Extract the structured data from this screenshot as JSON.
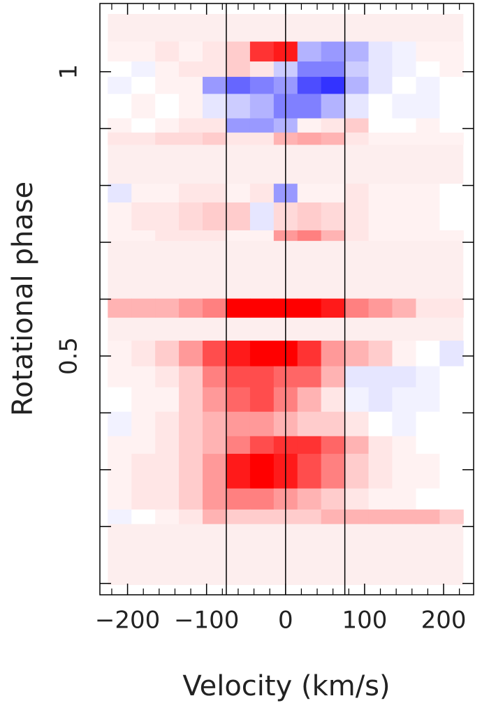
{
  "chart_data": {
    "type": "heatmap",
    "xlabel": "Velocity (km/s)",
    "ylabel": "Rotational phase",
    "xlim": [
      -235,
      238
    ],
    "ylim": [
      0.08,
      1.12
    ],
    "xticks": [
      {
        "value": -200,
        "label": "−200"
      },
      {
        "value": -100,
        "label": "−100"
      },
      0,
      100,
      200
    ],
    "xticks_minor": [
      -220,
      -180,
      -160,
      -140,
      -120,
      -80,
      -60,
      -40,
      -20,
      20,
      40,
      60,
      80,
      120,
      140,
      160,
      180,
      220
    ],
    "yticks": [
      0.5,
      1
    ],
    "yticks_unlabeled": [
      0.1,
      0.2,
      0.3,
      0.4,
      0.6,
      0.7,
      0.8,
      0.9
    ],
    "vlines": [
      -75,
      0,
      75
    ],
    "bins": [
      -225,
      -195,
      -165,
      -135,
      -105,
      -75,
      -45,
      -15,
      15,
      45,
      75,
      105,
      135,
      165,
      195,
      225
    ],
    "y_edges": [
      1.053,
      1.018,
      0.991,
      0.961,
      0.918,
      0.893,
      0.872,
      0.803,
      0.77,
      0.721,
      0.703,
      0.601,
      0.568,
      0.527,
      0.482,
      0.445,
      0.402,
      0.359,
      0.328,
      0.267,
      0.23,
      0.205
    ],
    "zlim": [
      -1,
      1
    ],
    "cmap": [
      "#0000ff",
      "#ffffff",
      "#ff0000"
    ],
    "nodata_color": "#fdeeee",
    "z": [
      [
        0.05,
        0.05,
        0.1,
        0.05,
        0.1,
        0.2,
        0.8,
        0.9,
        -0.3,
        -0.4,
        -0.3,
        -0.1,
        -0.05,
        0.05,
        0.05
      ],
      [
        0,
        -0.05,
        0.05,
        0.1,
        0.1,
        0.2,
        0.1,
        -0.2,
        -0.5,
        -0.5,
        -0.2,
        -0.1,
        -0.05,
        0,
        0.05
      ],
      [
        -0.05,
        0,
        0.05,
        0.05,
        -0.4,
        -0.6,
        -0.5,
        -0.4,
        -0.7,
        -0.8,
        -0.3,
        -0.1,
        0,
        -0.05,
        0
      ],
      [
        0,
        0.05,
        0,
        0.05,
        -0.1,
        -0.2,
        -0.3,
        -0.5,
        -0.5,
        -0.3,
        -0.1,
        0,
        -0.05,
        -0.05,
        0
      ],
      [
        0.05,
        0,
        0.05,
        0.1,
        0.1,
        -0.4,
        -0.4,
        -0.3,
        0.05,
        0.1,
        0.2,
        0,
        0,
        0.05,
        0
      ],
      [
        0.1,
        0.1,
        0.15,
        0.15,
        0.2,
        0.1,
        0.1,
        0.3,
        0.35,
        0.3,
        0.1,
        0.05,
        0.05,
        0.05,
        0.05
      ],
      null,
      [
        -0.1,
        0.05,
        0.05,
        0.1,
        0.1,
        0.05,
        0.1,
        -0.4,
        0.05,
        0.05,
        0.1,
        0.05,
        0.05,
        0.05,
        0
      ],
      [
        0.05,
        0.1,
        0.1,
        0.15,
        0.2,
        0.2,
        -0.1,
        0.15,
        0.2,
        0.15,
        0.1,
        0.05,
        0.05,
        0.05,
        0
      ],
      [
        0.05,
        0.05,
        0.1,
        0.1,
        0.1,
        0.05,
        0.05,
        0.4,
        0.5,
        0.3,
        0.1,
        0.05,
        0.05,
        0.05,
        0.05
      ],
      null,
      [
        0.3,
        0.3,
        0.3,
        0.4,
        0.5,
        1,
        1,
        1,
        1,
        0.9,
        0.5,
        0.4,
        0.3,
        0.1,
        0.1
      ],
      null,
      [
        0.05,
        0.1,
        0.2,
        0.4,
        0.7,
        0.9,
        1,
        1,
        0.8,
        0.4,
        0.3,
        0.2,
        0.05,
        0,
        -0.1
      ],
      [
        0.05,
        0.05,
        0.1,
        0.2,
        0.5,
        0.7,
        0.7,
        0.6,
        0.6,
        0.3,
        -0.1,
        -0.1,
        -0.1,
        -0.05,
        0
      ],
      [
        0,
        0.05,
        0.05,
        0.2,
        0.4,
        0.6,
        0.7,
        0.5,
        0.3,
        0.1,
        -0.05,
        -0.1,
        -0.05,
        -0.05,
        0
      ],
      [
        -0.05,
        0.05,
        0.1,
        0.2,
        0.3,
        0.4,
        0.4,
        0.3,
        0.2,
        0.2,
        0.1,
        0,
        -0.05,
        0,
        0
      ],
      [
        0.05,
        0.05,
        0.1,
        0.2,
        0.3,
        0.5,
        0.7,
        0.8,
        0.8,
        0.6,
        0.3,
        0.1,
        0.05,
        0,
        0
      ],
      [
        0.05,
        0.1,
        0.1,
        0.2,
        0.4,
        0.9,
        1,
        0.9,
        0.7,
        0.5,
        0.2,
        0.1,
        0.05,
        0.05,
        0
      ],
      [
        0.05,
        0.1,
        0.1,
        0.2,
        0.4,
        0.5,
        0.5,
        0.4,
        0.3,
        0.2,
        0.1,
        0.05,
        0.05,
        0,
        0
      ],
      [
        -0.05,
        0,
        0.05,
        0.1,
        0.3,
        0.2,
        0.2,
        0.2,
        0.2,
        0.3,
        0.3,
        0.3,
        0.3,
        0.3,
        0.2
      ]
    ]
  }
}
